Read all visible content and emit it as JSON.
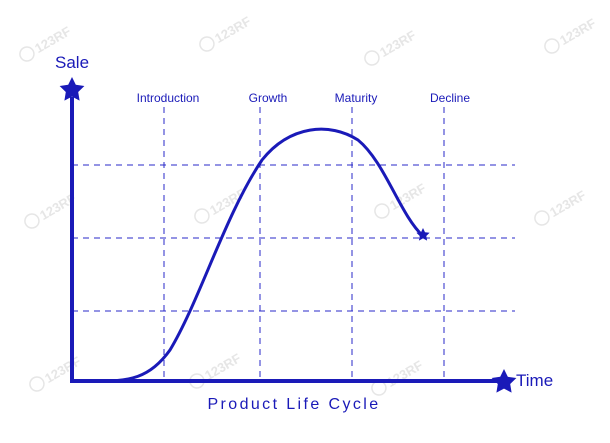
{
  "colors": {
    "primary": "#1a1ab8",
    "grid": "#2a2ac8",
    "watermark": "#e6e6e6"
  },
  "axes": {
    "y_label": "Sale",
    "x_label": "Time"
  },
  "stages": [
    {
      "label": "Introduction"
    },
    {
      "label": "Growth"
    },
    {
      "label": "Maturity"
    },
    {
      "label": "Decline"
    }
  ],
  "title": "Product Life Cycle",
  "watermark_text": "123RF",
  "icons": {
    "axis_end": "star-icon",
    "curve_end": "star-icon"
  }
}
